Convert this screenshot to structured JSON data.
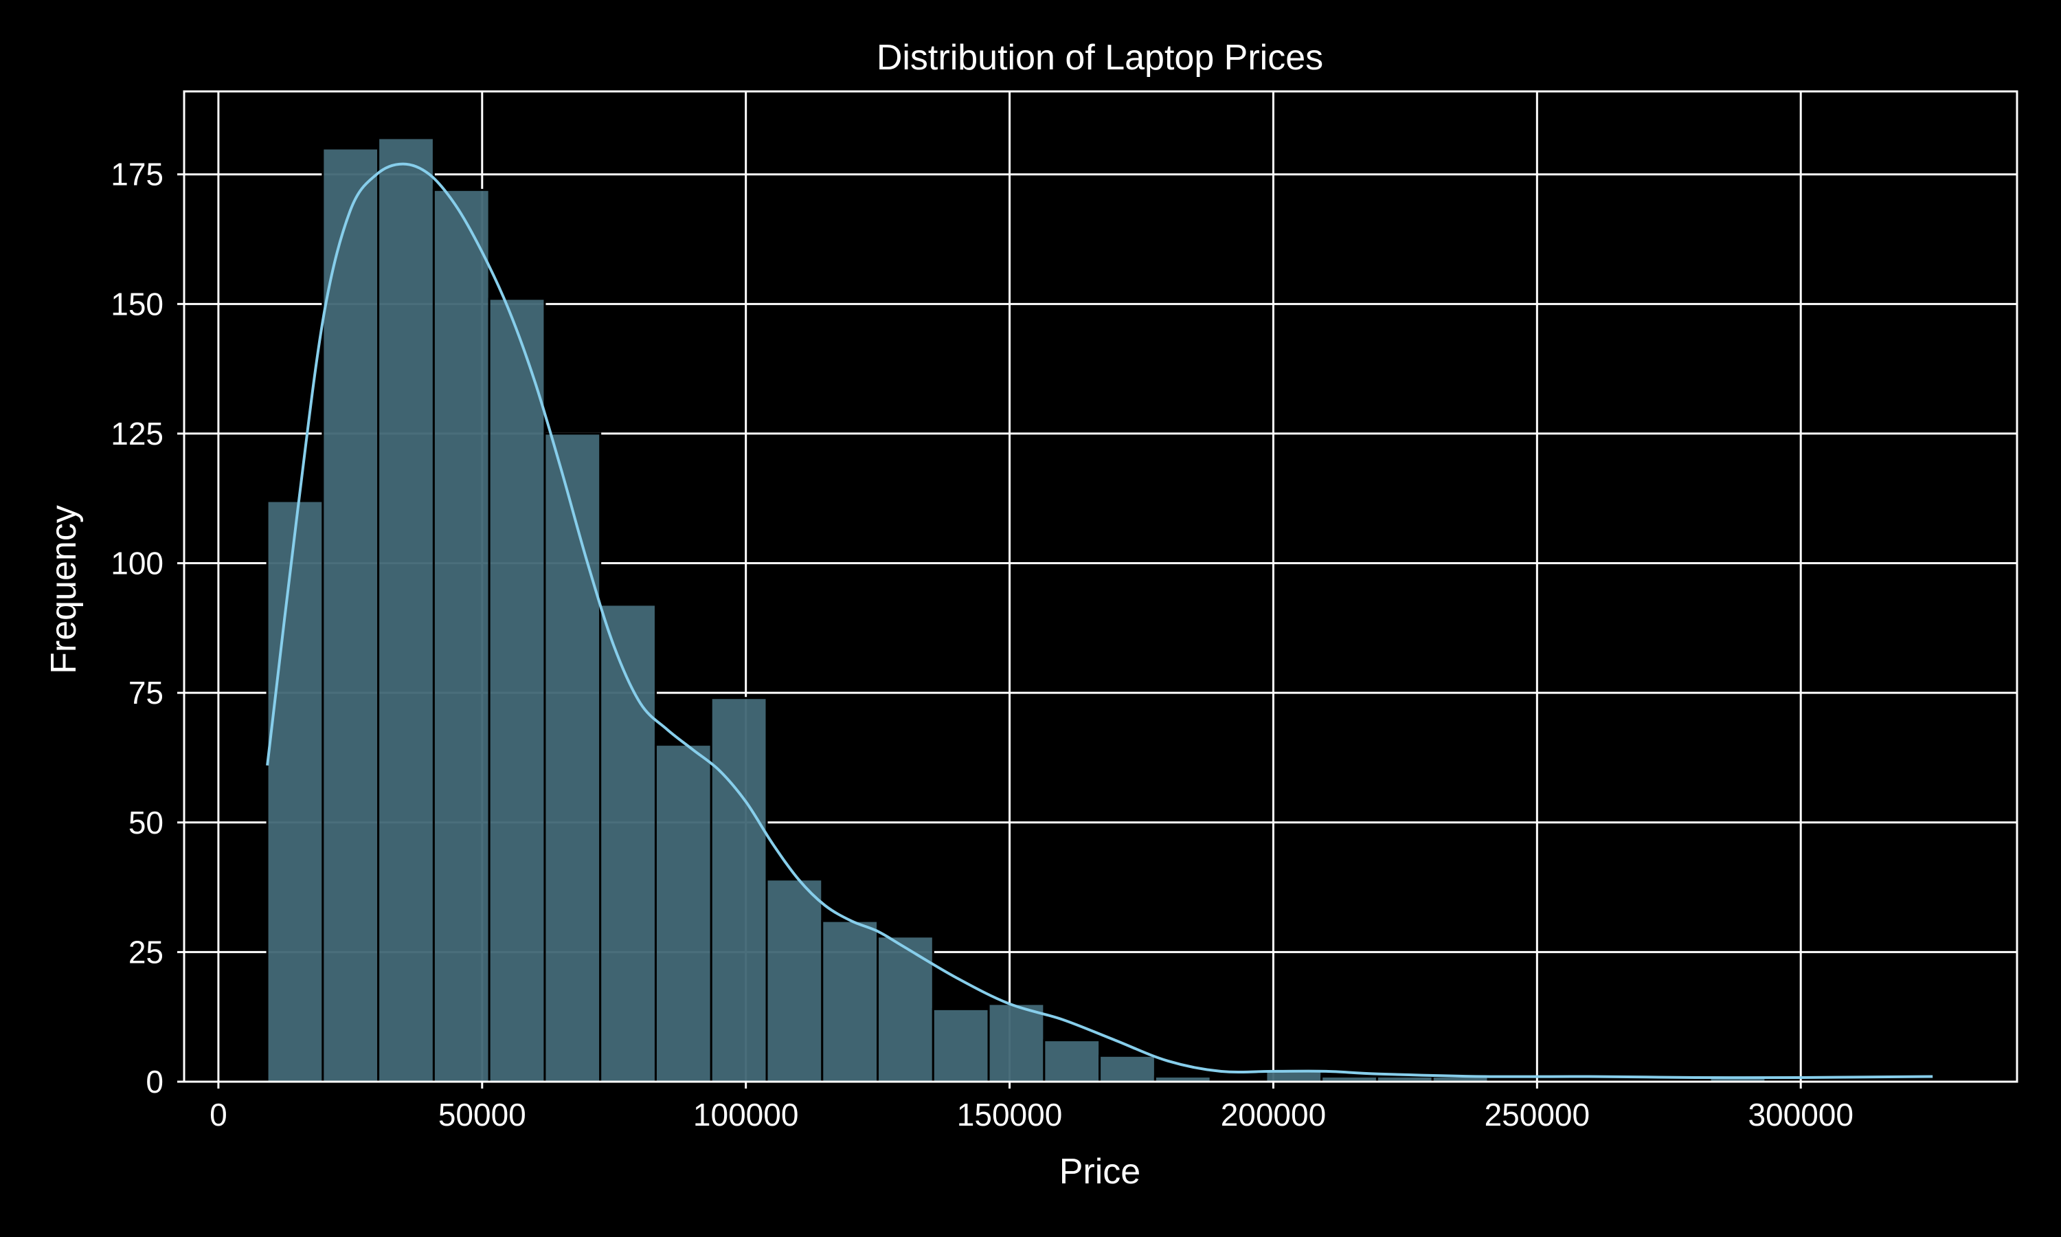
{
  "chart_data": {
    "type": "bar",
    "title": "Distribution of Laptop Prices",
    "xlabel": "Price",
    "ylabel": "Frequency",
    "xlim": [
      -6500,
      341000
    ],
    "ylim": [
      0,
      191
    ],
    "xticks": [
      0,
      50000,
      100000,
      150000,
      200000,
      250000,
      300000
    ],
    "yticks": [
      0,
      25,
      50,
      75,
      100,
      125,
      150,
      175
    ],
    "grid": true,
    "legend": "none",
    "bin_start": 9270,
    "bin_width": 10520,
    "counts": [
      112,
      180,
      182,
      172,
      151,
      125,
      92,
      65,
      74,
      39,
      31,
      28,
      14,
      15,
      8,
      5,
      1,
      0,
      2,
      1,
      1,
      1,
      0,
      0,
      0,
      0,
      1,
      0,
      0,
      0
    ],
    "kde": {
      "x": [
        9270,
        15000,
        20000,
        25000,
        30000,
        35000,
        40000,
        45000,
        50000,
        55000,
        60000,
        65000,
        70000,
        75000,
        80000,
        85000,
        90000,
        95000,
        100000,
        105000,
        110000,
        115000,
        120000,
        125000,
        130000,
        140000,
        150000,
        160000,
        170000,
        180000,
        190000,
        200000,
        210000,
        220000,
        240000,
        260000,
        280000,
        300000,
        325000
      ],
      "y": [
        61,
        110,
        148,
        168,
        175,
        177,
        175,
        169,
        160,
        149,
        135,
        118,
        100,
        84,
        73,
        68,
        64,
        60,
        54,
        46,
        39,
        34,
        31,
        29,
        26,
        20,
        15,
        12,
        8,
        4,
        2,
        2,
        2,
        1.5,
        1,
        1,
        0.8,
        0.8,
        1
      ]
    },
    "colors": {
      "background": "#000000",
      "bar_fill": "#436876",
      "bar_edge": "#000000",
      "kde_line": "#87ceeb",
      "grid": "#ffffff",
      "text": "#ffffff"
    }
  }
}
